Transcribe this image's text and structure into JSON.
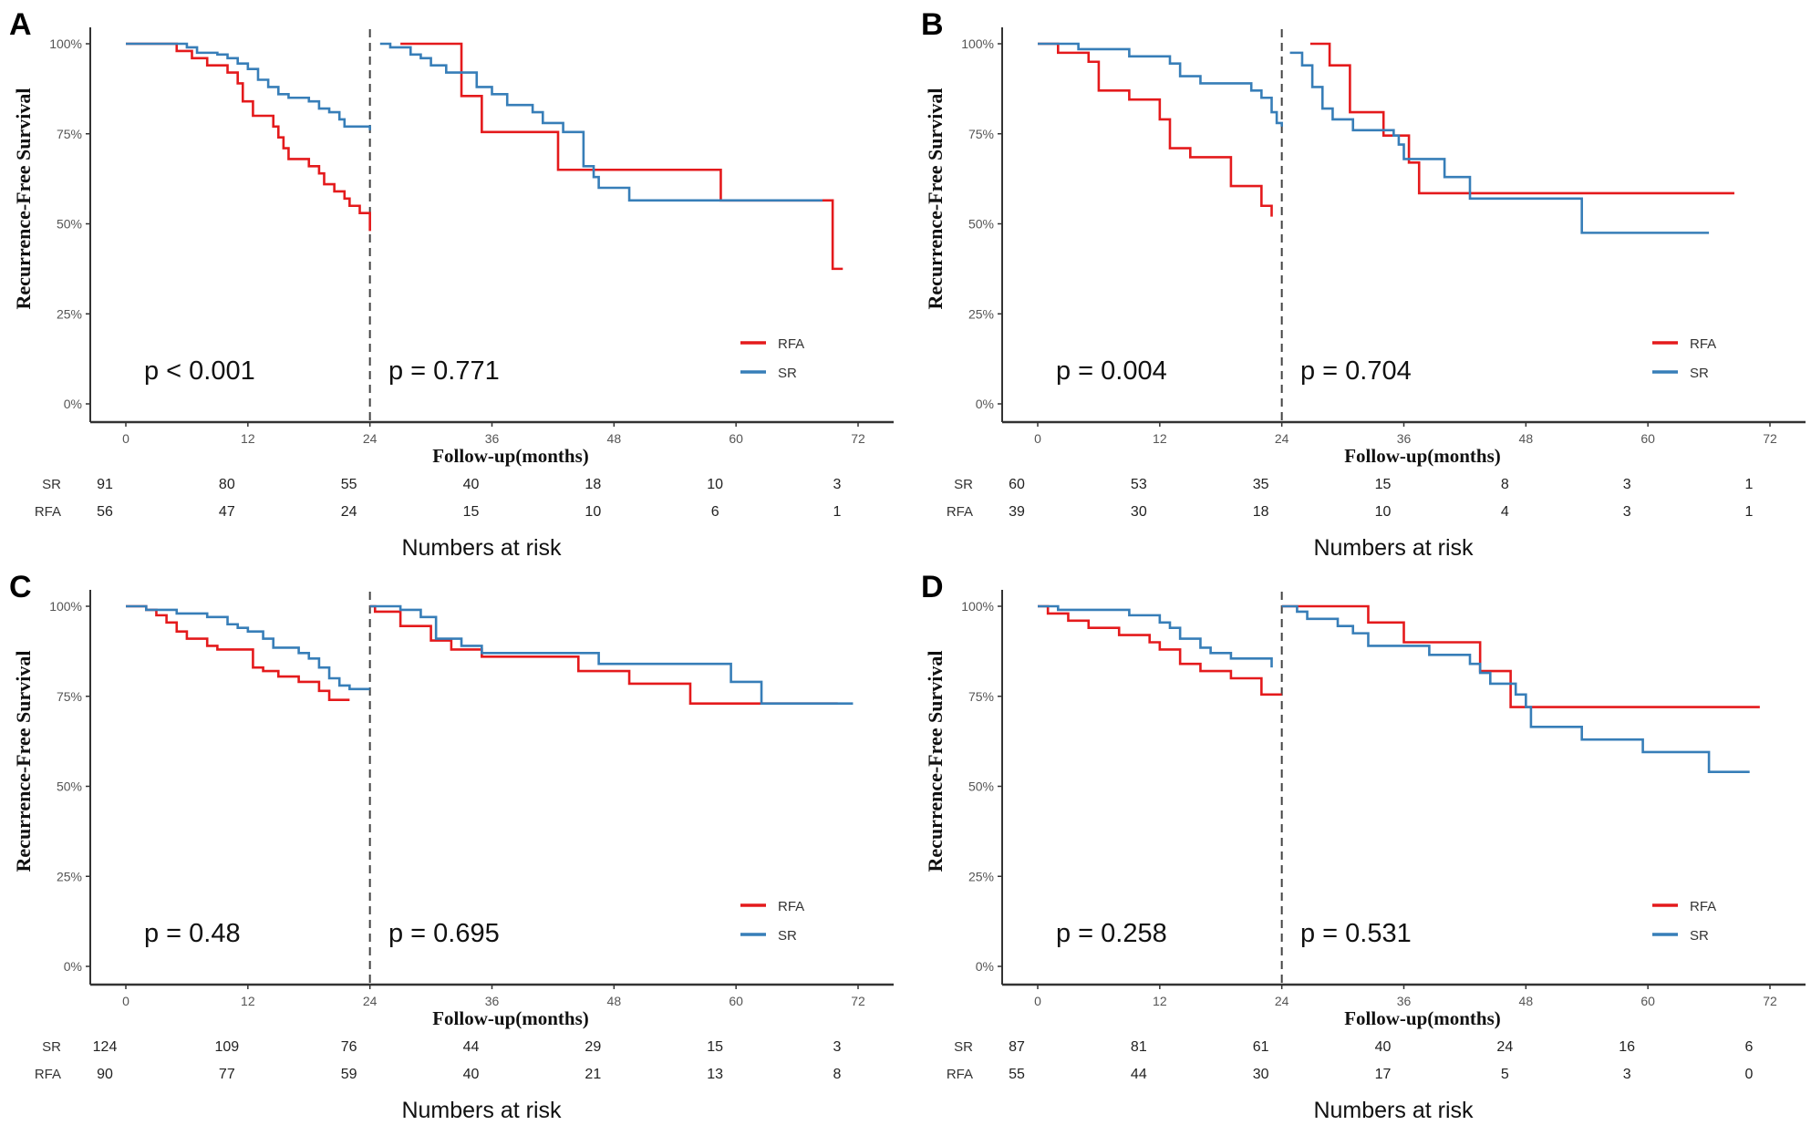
{
  "chart_data": {
    "type": "line",
    "subtype": "kaplan-meier step curves",
    "xlabel": "Follow-up(months)",
    "ylabel": "Recurrence-Free Survival",
    "xticks": [
      0,
      12,
      24,
      36,
      48,
      60,
      72
    ],
    "yticks": [
      "0%",
      "25%",
      "50%",
      "75%",
      "100%"
    ],
    "xlim": [
      0,
      72
    ],
    "ylim": [
      0,
      100
    ],
    "landmark_month": 24,
    "risk_table_title": "Numbers at risk",
    "legend": [
      {
        "name": "RFA",
        "color": "#e41a1c"
      },
      {
        "name": "SR",
        "color": "#377eb8"
      }
    ],
    "legend_placement": "bottom-right",
    "panels": [
      {
        "letter": "A",
        "p_left": "p < 0.001",
        "p_right": "p = 0.771",
        "risk": {
          "SR": [
            "91",
            "80",
            "55",
            "40",
            "18",
            "10",
            "3"
          ],
          "RFA": [
            "56",
            "47",
            "24",
            "15",
            "10",
            "6",
            "1"
          ]
        },
        "series": [
          {
            "name": "RFA",
            "segments": [
              [
                [
                  0,
                  100
                ],
                [
                  5,
                  98
                ],
                [
                  6.5,
                  96
                ],
                [
                  8,
                  94
                ],
                [
                  10,
                  92
                ],
                [
                  11,
                  89
                ],
                [
                  11.5,
                  84
                ],
                [
                  12.5,
                  80
                ],
                [
                  14.5,
                  77
                ],
                [
                  15,
                  74
                ],
                [
                  15.5,
                  71
                ],
                [
                  16,
                  68
                ],
                [
                  18,
                  66
                ],
                [
                  19,
                  64
                ],
                [
                  19.5,
                  61
                ],
                [
                  20.5,
                  59
                ],
                [
                  21.5,
                  57
                ],
                [
                  22,
                  55
                ],
                [
                  23,
                  53
                ],
                [
                  24,
                  48
                ]
              ],
              [
                [
                  27,
                  100
                ],
                [
                  33,
                  85.5
                ],
                [
                  35,
                  75.5
                ],
                [
                  42.5,
                  65
                ],
                [
                  58.5,
                  56.5
                ],
                [
                  69.5,
                  37.5
                ],
                [
                  70.5,
                  37.5
                ]
              ]
            ]
          },
          {
            "name": "SR",
            "segments": [
              [
                [
                  0,
                  100
                ],
                [
                  6,
                  99
                ],
                [
                  7,
                  97.5
                ],
                [
                  9,
                  97
                ],
                [
                  10,
                  96
                ],
                [
                  11,
                  94.5
                ],
                [
                  12,
                  93
                ],
                [
                  13,
                  90
                ],
                [
                  14,
                  88
                ],
                [
                  15,
                  86
                ],
                [
                  16,
                  85
                ],
                [
                  18,
                  84
                ],
                [
                  19,
                  82
                ],
                [
                  20,
                  81
                ],
                [
                  21,
                  79
                ],
                [
                  21.5,
                  77
                ],
                [
                  24,
                  76
                ]
              ],
              [
                [
                  25,
                  100
                ],
                [
                  26,
                  99
                ],
                [
                  28,
                  97
                ],
                [
                  29,
                  96
                ],
                [
                  30,
                  94
                ],
                [
                  31.5,
                  92
                ],
                [
                  34.5,
                  88
                ],
                [
                  36,
                  86
                ],
                [
                  37.5,
                  83
                ],
                [
                  40,
                  81
                ],
                [
                  41,
                  78
                ],
                [
                  43,
                  75.5
                ],
                [
                  45,
                  66
                ],
                [
                  46,
                  63
                ],
                [
                  46.5,
                  60
                ],
                [
                  49.5,
                  56.5
                ],
                [
                  68.5,
                  56.5
                ]
              ]
            ]
          }
        ]
      },
      {
        "letter": "B",
        "p_left": "p = 0.004",
        "p_right": "p = 0.704",
        "risk": {
          "SR": [
            "60",
            "53",
            "35",
            "15",
            "8",
            "3",
            "1"
          ],
          "RFA": [
            "39",
            "30",
            "18",
            "10",
            "4",
            "3",
            "1"
          ]
        },
        "series": [
          {
            "name": "RFA",
            "segments": [
              [
                [
                  0,
                  100
                ],
                [
                  2,
                  97.5
                ],
                [
                  5,
                  95
                ],
                [
                  6,
                  87
                ],
                [
                  9,
                  84.5
                ],
                [
                  12,
                  79
                ],
                [
                  13,
                  71
                ],
                [
                  15,
                  68.5
                ],
                [
                  19,
                  60.5
                ],
                [
                  22,
                  55
                ],
                [
                  23,
                  52
                ]
              ],
              [
                [
                  26.8,
                  100
                ],
                [
                  28.7,
                  94
                ],
                [
                  30.7,
                  81
                ],
                [
                  34,
                  74.5
                ],
                [
                  36.5,
                  67
                ],
                [
                  37.5,
                  58.5
                ],
                [
                  68.5,
                  58.5
                ]
              ]
            ]
          },
          {
            "name": "SR",
            "segments": [
              [
                [
                  0,
                  100
                ],
                [
                  4,
                  98.5
                ],
                [
                  9,
                  96.5
                ],
                [
                  13,
                  94.5
                ],
                [
                  14,
                  91
                ],
                [
                  16,
                  89
                ],
                [
                  21,
                  87
                ],
                [
                  22,
                  85
                ],
                [
                  23,
                  81
                ],
                [
                  23.5,
                  78
                ],
                [
                  24,
                  77
                ]
              ],
              [
                [
                  24.8,
                  97.5
                ],
                [
                  26,
                  94
                ],
                [
                  27,
                  88
                ],
                [
                  28,
                  82
                ],
                [
                  29,
                  79
                ],
                [
                  31,
                  76
                ],
                [
                  35,
                  74.5
                ],
                [
                  35.5,
                  72
                ],
                [
                  36,
                  68
                ],
                [
                  40,
                  63
                ],
                [
                  42.5,
                  57
                ],
                [
                  53.5,
                  47.5
                ],
                [
                  66,
                  47.5
                ]
              ]
            ]
          }
        ]
      },
      {
        "letter": "C",
        "p_left": "p = 0.48",
        "p_right": "p = 0.695",
        "risk": {
          "SR": [
            "124",
            "109",
            "76",
            "44",
            "29",
            "15",
            "3"
          ],
          "RFA": [
            "90",
            "77",
            "59",
            "40",
            "21",
            "13",
            "8"
          ]
        },
        "series": [
          {
            "name": "RFA",
            "segments": [
              [
                [
                  0,
                  100
                ],
                [
                  2,
                  99
                ],
                [
                  3,
                  97.5
                ],
                [
                  4,
                  95.5
                ],
                [
                  5,
                  93
                ],
                [
                  6,
                  91
                ],
                [
                  8,
                  89
                ],
                [
                  9,
                  88
                ],
                [
                  12.5,
                  83
                ],
                [
                  13.5,
                  82
                ],
                [
                  15,
                  80.5
                ],
                [
                  17,
                  79
                ],
                [
                  19,
                  76.5
                ],
                [
                  20,
                  74
                ],
                [
                  22,
                  74
                ]
              ],
              [
                [
                  24,
                  100
                ],
                [
                  24.5,
                  98.5
                ],
                [
                  27,
                  94.5
                ],
                [
                  30,
                  90.5
                ],
                [
                  32,
                  88
                ],
                [
                  35,
                  86
                ],
                [
                  44.5,
                  82
                ],
                [
                  49.5,
                  78.5
                ],
                [
                  55.5,
                  73
                ],
                [
                  70,
                  73
                ]
              ]
            ]
          },
          {
            "name": "SR",
            "segments": [
              [
                [
                  0,
                  100
                ],
                [
                  2,
                  99
                ],
                [
                  5,
                  98
                ],
                [
                  8,
                  97
                ],
                [
                  10,
                  95
                ],
                [
                  11,
                  94
                ],
                [
                  12,
                  93
                ],
                [
                  13.5,
                  91
                ],
                [
                  14.5,
                  88.5
                ],
                [
                  17,
                  87
                ],
                [
                  18,
                  85.5
                ],
                [
                  19,
                  83
                ],
                [
                  20,
                  80
                ],
                [
                  21,
                  78
                ],
                [
                  22,
                  77
                ],
                [
                  24,
                  77
                ]
              ],
              [
                [
                  24,
                  100
                ],
                [
                  27,
                  99
                ],
                [
                  29,
                  97
                ],
                [
                  30.5,
                  91
                ],
                [
                  33,
                  89
                ],
                [
                  35,
                  87
                ],
                [
                  46.5,
                  84
                ],
                [
                  59.5,
                  79
                ],
                [
                  62.5,
                  73
                ],
                [
                  71.5,
                  73
                ]
              ]
            ]
          }
        ]
      },
      {
        "letter": "D",
        "p_left": "p = 0.258",
        "p_right": "p = 0.531",
        "risk": {
          "SR": [
            "87",
            "81",
            "61",
            "40",
            "24",
            "16",
            "6"
          ],
          "RFA": [
            "55",
            "44",
            "30",
            "17",
            "5",
            "3",
            "0"
          ]
        },
        "series": [
          {
            "name": "RFA",
            "segments": [
              [
                [
                  0,
                  100
                ],
                [
                  1,
                  98
                ],
                [
                  3,
                  96
                ],
                [
                  5,
                  94
                ],
                [
                  8,
                  92
                ],
                [
                  11,
                  90
                ],
                [
                  12,
                  88
                ],
                [
                  14,
                  84
                ],
                [
                  16,
                  82
                ],
                [
                  19,
                  80
                ],
                [
                  22,
                  75.5
                ],
                [
                  24,
                  75.5
                ]
              ],
              [
                [
                  24,
                  100
                ],
                [
                  32.5,
                  95.5
                ],
                [
                  36,
                  90
                ],
                [
                  43.5,
                  82
                ],
                [
                  46.5,
                  72
                ],
                [
                  71,
                  72
                ]
              ]
            ]
          },
          {
            "name": "SR",
            "segments": [
              [
                [
                  0,
                  100
                ],
                [
                  2,
                  99
                ],
                [
                  9,
                  97.5
                ],
                [
                  12,
                  95.5
                ],
                [
                  13,
                  94
                ],
                [
                  14,
                  91
                ],
                [
                  16,
                  88.5
                ],
                [
                  17,
                  87
                ],
                [
                  19,
                  85.5
                ],
                [
                  23,
                  83
                ]
              ],
              [
                [
                  24,
                  100
                ],
                [
                  25.5,
                  98.5
                ],
                [
                  26.5,
                  96.5
                ],
                [
                  29.5,
                  94.5
                ],
                [
                  31,
                  92.5
                ],
                [
                  32.5,
                  89
                ],
                [
                  38.5,
                  86.5
                ],
                [
                  42.5,
                  84
                ],
                [
                  43.5,
                  81.5
                ],
                [
                  44.5,
                  78.5
                ],
                [
                  47,
                  75.5
                ],
                [
                  48,
                  72
                ],
                [
                  48.5,
                  66.5
                ],
                [
                  53.5,
                  63
                ],
                [
                  59.5,
                  59.5
                ],
                [
                  66,
                  54
                ],
                [
                  70,
                  54
                ]
              ]
            ]
          }
        ]
      }
    ]
  }
}
